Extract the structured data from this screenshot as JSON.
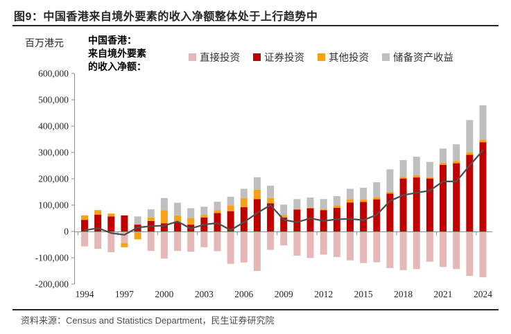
{
  "header": {
    "title": "图9：中国香港来自境外要素的收入净额整体处于上行趋势中"
  },
  "chart": {
    "unit_label": "百万港元",
    "annotation": {
      "line1": "中国香港：",
      "line2": "来自境外要素",
      "line3": "的收入净额："
    }
  },
  "chart_data": {
    "type": "bar",
    "subtype": "stacked-bars-with-net-line",
    "title": "中国香港来自境外要素的收入净额",
    "unit": "百万港元",
    "ylim": [
      -200000,
      600000
    ],
    "ytick_interval": 100000,
    "ytick_labels": [
      "600,000",
      "500,000",
      "400,000",
      "300,000",
      "200,000",
      "100,000",
      "0",
      "-100,000",
      "-200,000"
    ],
    "xtick_labels": [
      "1994",
      "1997",
      "2000",
      "2003",
      "2006",
      "2009",
      "2012",
      "2015",
      "2018",
      "2021",
      "2024"
    ],
    "grid": "off",
    "legend_position": "top",
    "years": [
      1994,
      1995,
      1996,
      1997,
      1998,
      1999,
      2000,
      2001,
      2002,
      2003,
      2004,
      2005,
      2006,
      2007,
      2008,
      2009,
      2010,
      2011,
      2012,
      2013,
      2014,
      2015,
      2016,
      2017,
      2018,
      2019,
      2020,
      2021,
      2022,
      2023,
      2024
    ],
    "series": [
      {
        "name": "直接投资",
        "color": "#E5B8B7",
        "values": [
          -57000,
          -66000,
          -79000,
          -44000,
          -4000,
          -74000,
          -103000,
          -74000,
          -77000,
          -60000,
          -75000,
          -123000,
          -118000,
          -150000,
          -70000,
          -53000,
          -92000,
          -101000,
          -88000,
          -97000,
          -110000,
          -120000,
          -117000,
          -139000,
          -147000,
          -143000,
          -115000,
          -135000,
          -143000,
          -169000,
          -174000
        ]
      },
      {
        "name": "证券投资",
        "color": "#C00000",
        "values": [
          44000,
          64000,
          57000,
          61000,
          26000,
          40000,
          31000,
          35000,
          26000,
          53000,
          70000,
          77000,
          92000,
          123000,
          107000,
          53000,
          83000,
          88000,
          81000,
          90000,
          110000,
          112000,
          122000,
          144000,
          201000,
          205000,
          201000,
          253000,
          259000,
          291000,
          339000
        ]
      },
      {
        "name": "其他投资",
        "color": "#F9A01B",
        "values": [
          17000,
          17000,
          11000,
          -16000,
          -26000,
          13000,
          50000,
          26000,
          25000,
          10000,
          11000,
          22000,
          35000,
          35000,
          20000,
          9000,
          2000,
          2000,
          3000,
          9000,
          13000,
          9000,
          8000,
          6000,
          6000,
          8000,
          5000,
          8000,
          9000,
          9000,
          10000
        ]
      },
      {
        "name": "储备资产收益",
        "color": "#BFBFBF",
        "values": [
          0,
          0,
          0,
          0,
          31000,
          31000,
          46000,
          48000,
          37000,
          31000,
          32000,
          33000,
          35000,
          48000,
          47000,
          40000,
          38000,
          39000,
          39000,
          35000,
          39000,
          45000,
          57000,
          86000,
          64000,
          71000,
          58000,
          54000,
          63000,
          123000,
          130000
        ]
      }
    ],
    "line_series": {
      "name": "收入净额（合计）",
      "color": "#4F4F4F",
      "values": [
        4000,
        13000,
        -6000,
        -13000,
        15000,
        20000,
        22000,
        38000,
        11000,
        26000,
        32000,
        5000,
        35000,
        70000,
        100000,
        44000,
        35000,
        50000,
        40000,
        46000,
        48000,
        43000,
        63000,
        116000,
        138000,
        147000,
        155000,
        190000,
        190000,
        250000,
        308000
      ]
    }
  },
  "footer": {
    "source": "资料来源：Census and Statistics Department，民生证券研究院"
  }
}
